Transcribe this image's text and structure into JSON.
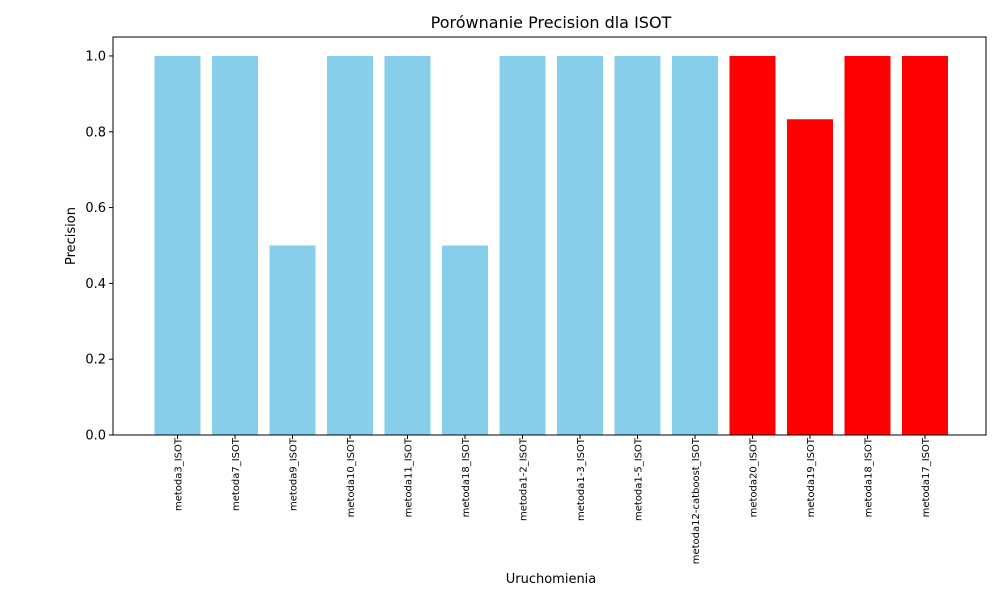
{
  "chart_data": {
    "type": "bar",
    "title": "Porównanie Precision dla ISOT",
    "xlabel": "Uruchomienia",
    "ylabel": "Precision",
    "ylim": [
      0,
      1.05
    ],
    "yticks": [
      "0.0",
      "0.2",
      "0.4",
      "0.6",
      "0.8",
      "1.0"
    ],
    "grid": false,
    "categories": [
      "metoda3_ISOT",
      "metoda7_ISOT",
      "metoda9_ISOT",
      "metoda10_ISOT",
      "metoda11_ISOT",
      "metoda18_ISOT",
      "metoda1-2_ISOT",
      "metoda1-3_ISOT",
      "metoda1-5_ISOT",
      "metoda12-catboost_ISOT",
      "metoda20_ISOT",
      "metoda19_ISOT",
      "metoda18_ISOT",
      "metoda17_ISOT"
    ],
    "values": [
      1.0,
      1.0,
      0.5,
      1.0,
      1.0,
      0.5,
      1.0,
      1.0,
      1.0,
      1.0,
      1.0,
      0.833,
      1.0,
      1.0
    ],
    "colors": [
      "#87ceeb",
      "#87ceeb",
      "#87ceeb",
      "#87ceeb",
      "#87ceeb",
      "#87ceeb",
      "#87ceeb",
      "#87ceeb",
      "#87ceeb",
      "#87ceeb",
      "#ff0000",
      "#ff0000",
      "#ff0000",
      "#ff0000"
    ]
  }
}
